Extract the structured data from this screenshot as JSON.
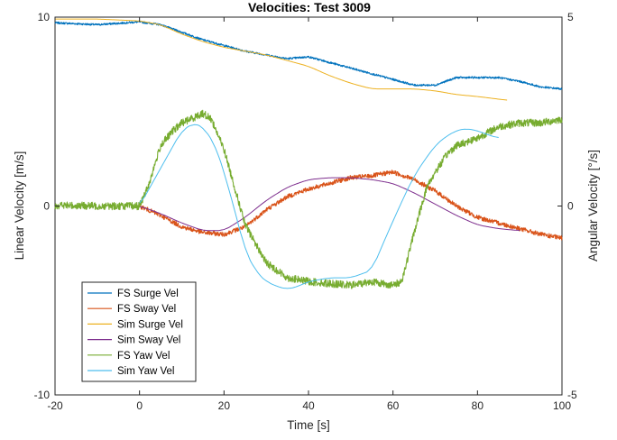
{
  "chart_data": {
    "type": "line",
    "title": "Velocities: Test 3009",
    "xlabel": "Time [s]",
    "ylabel_left": "Linear Velocity [m/s]",
    "ylabel_right": "Angular Velocity [°/s]",
    "xlim": [
      -20,
      100
    ],
    "ylim_left": [
      -10,
      10
    ],
    "ylim_right": [
      -5,
      5
    ],
    "x_ticks": [
      "-20",
      "0",
      "20",
      "40",
      "60",
      "80",
      "100"
    ],
    "y_ticks_left": [
      "10",
      "0",
      "-10"
    ],
    "y_ticks_right": [
      "5",
      "0",
      "-5"
    ],
    "grid": false,
    "legend_position": "bottom-left",
    "series": [
      {
        "name": "FS Surge Vel",
        "axis": "left",
        "color": "#0072BD",
        "noise": 0.05,
        "x": [
          -20,
          -10,
          0,
          5,
          10,
          15,
          20,
          25,
          30,
          35,
          40,
          45,
          50,
          55,
          60,
          65,
          70,
          75,
          80,
          85,
          90,
          95,
          100
        ],
        "y": [
          9.7,
          9.6,
          9.75,
          9.6,
          9.2,
          8.8,
          8.5,
          8.2,
          8.0,
          7.8,
          7.9,
          7.6,
          7.3,
          7.0,
          6.7,
          6.4,
          6.4,
          6.8,
          6.8,
          6.8,
          6.6,
          6.3,
          6.2
        ]
      },
      {
        "name": "FS Sway Vel",
        "axis": "left",
        "color": "#D95319",
        "noise": 0.12,
        "x": [
          0,
          5,
          10,
          15,
          20,
          25,
          30,
          35,
          40,
          45,
          50,
          55,
          60,
          65,
          70,
          75,
          80,
          85,
          90,
          95,
          100
        ],
        "y": [
          0,
          -0.5,
          -1.1,
          -1.4,
          -1.5,
          -1.1,
          -0.2,
          0.5,
          0.9,
          1.2,
          1.5,
          1.6,
          1.8,
          1.4,
          0.8,
          0.0,
          -0.6,
          -0.9,
          -1.2,
          -1.5,
          -1.7
        ]
      },
      {
        "name": "Sim Surge Vel",
        "axis": "left",
        "color": "#EDB120",
        "noise": 0,
        "x": [
          -20,
          -10,
          0,
          5,
          10,
          15,
          20,
          25,
          30,
          35,
          40,
          45,
          50,
          55,
          60,
          65,
          70,
          75,
          80,
          87
        ],
        "y": [
          9.9,
          9.9,
          9.8,
          9.6,
          9.1,
          8.7,
          8.4,
          8.2,
          8.0,
          7.7,
          7.4,
          6.9,
          6.5,
          6.2,
          6.2,
          6.2,
          6.1,
          5.9,
          5.8,
          5.6
        ]
      },
      {
        "name": "Sim Sway Vel",
        "axis": "left",
        "color": "#7E2F8E",
        "noise": 0,
        "x": [
          0,
          5,
          10,
          15,
          20,
          25,
          30,
          35,
          40,
          45,
          50,
          55,
          60,
          65,
          70,
          75,
          80,
          85,
          90
        ],
        "y": [
          0,
          -0.4,
          -0.9,
          -1.3,
          -1.3,
          -0.6,
          0.3,
          1.0,
          1.4,
          1.5,
          1.5,
          1.4,
          1.2,
          0.7,
          0.1,
          -0.5,
          -1.0,
          -1.2,
          -1.3
        ]
      },
      {
        "name": "FS Yaw Vel",
        "axis": "right",
        "color": "#77AC30",
        "noise": 0.1,
        "x": [
          -20,
          -10,
          0,
          2,
          5,
          8,
          10,
          12,
          15,
          17,
          20,
          23,
          25,
          28,
          30,
          35,
          40,
          45,
          50,
          55,
          60,
          62,
          63,
          65,
          68,
          70,
          73,
          75,
          80,
          85,
          90,
          95,
          100
        ],
        "y": [
          0.02,
          0.0,
          0.0,
          0.5,
          1.6,
          2.0,
          2.2,
          2.3,
          2.45,
          2.3,
          1.5,
          0.3,
          -0.5,
          -1.1,
          -1.5,
          -1.9,
          -2.0,
          -2.05,
          -2.1,
          -2.0,
          -2.1,
          -2.0,
          -1.6,
          -0.7,
          0.5,
          0.9,
          1.4,
          1.6,
          1.8,
          2.1,
          2.2,
          2.2,
          2.3
        ]
      },
      {
        "name": "Sim Yaw Vel",
        "axis": "right",
        "color": "#4DBEEE",
        "noise": 0,
        "x": [
          0,
          5,
          10,
          13,
          15,
          18,
          20,
          23,
          25,
          28,
          30,
          33,
          35,
          37,
          40,
          45,
          50,
          55,
          58,
          60,
          62,
          65,
          68,
          70,
          72,
          75,
          77,
          80,
          82,
          85
        ],
        "y": [
          0,
          1.0,
          2.0,
          2.2,
          2.1,
          1.6,
          0.9,
          -0.3,
          -1.2,
          -1.8,
          -2.0,
          -2.15,
          -2.2,
          -2.15,
          -2.0,
          -1.9,
          -1.9,
          -1.7,
          -0.9,
          -0.4,
          0.1,
          0.8,
          1.3,
          1.6,
          1.8,
          2.0,
          2.05,
          2.0,
          1.9,
          1.8
        ]
      }
    ]
  }
}
